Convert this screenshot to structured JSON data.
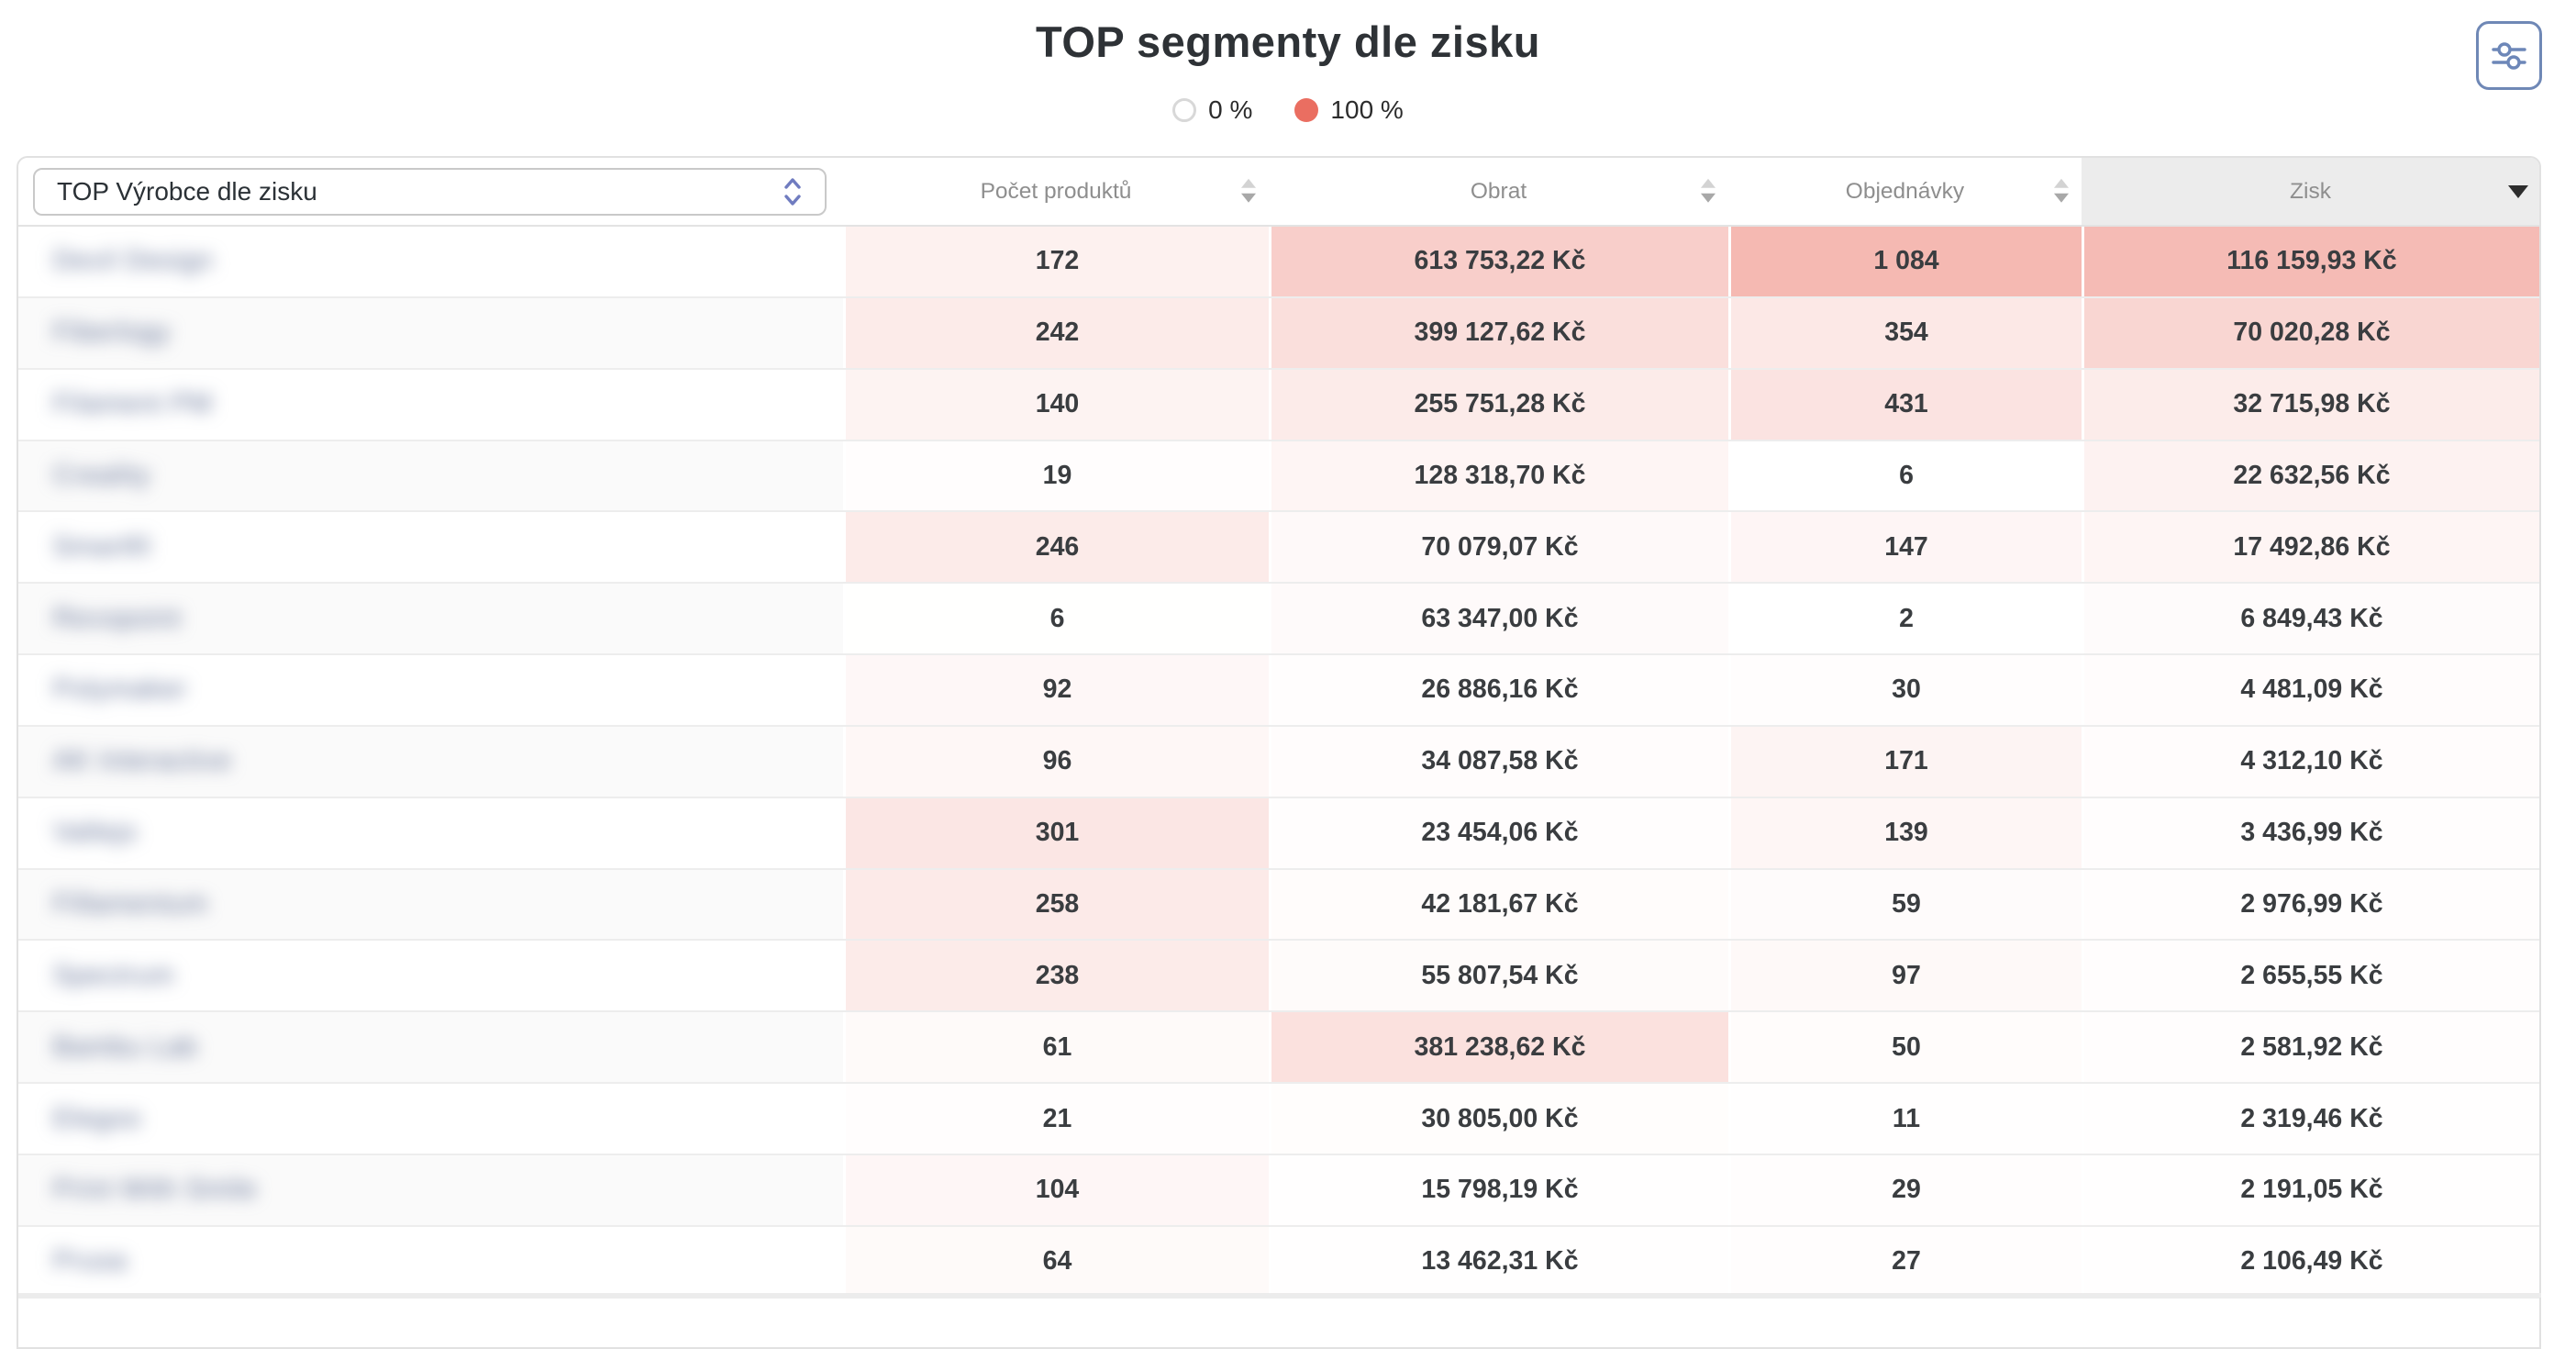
{
  "page": {
    "title": "TOP segmenty dle zisku"
  },
  "legend": {
    "items": [
      {
        "label": "0 %"
      },
      {
        "label": "100 %"
      }
    ],
    "zero_color": "#ffffff",
    "zero_border": "#d8d8d8",
    "full_color": "#ea6e61"
  },
  "select": {
    "value": "TOP Výrobce dle zisku"
  },
  "table": {
    "columns": [
      {
        "label": "Počet produktů",
        "sortable": true
      },
      {
        "label": "Obrat",
        "sortable": true
      },
      {
        "label": "Objednávky",
        "sortable": true
      },
      {
        "label": "Zisk",
        "sortable": true,
        "sorted": "desc"
      }
    ],
    "rows": [
      {
        "name": "Devil Design",
        "cells": [
          {
            "text": "172",
            "value": 172
          },
          {
            "text": "613 753,22 Kč",
            "value": 613753.22
          },
          {
            "text": "1 084",
            "value": 1084
          },
          {
            "text": "116 159,93 Kč",
            "value": 116159.93
          }
        ]
      },
      {
        "name": "Fiberlogy",
        "cells": [
          {
            "text": "242",
            "value": 242
          },
          {
            "text": "399 127,62 Kč",
            "value": 399127.62
          },
          {
            "text": "354",
            "value": 354
          },
          {
            "text": "70 020,28 Kč",
            "value": 70020.28
          }
        ]
      },
      {
        "name": "Filament PM",
        "cells": [
          {
            "text": "140",
            "value": 140
          },
          {
            "text": "255 751,28 Kč",
            "value": 255751.28
          },
          {
            "text": "431",
            "value": 431
          },
          {
            "text": "32 715,98 Kč",
            "value": 32715.98
          }
        ]
      },
      {
        "name": "Creality",
        "cells": [
          {
            "text": "19",
            "value": 19
          },
          {
            "text": "128 318,70 Kč",
            "value": 128318.7
          },
          {
            "text": "6",
            "value": 6
          },
          {
            "text": "22 632,56 Kč",
            "value": 22632.56
          }
        ]
      },
      {
        "name": "Smartfil",
        "cells": [
          {
            "text": "246",
            "value": 246
          },
          {
            "text": "70 079,07 Kč",
            "value": 70079.07
          },
          {
            "text": "147",
            "value": 147
          },
          {
            "text": "17 492,86 Kč",
            "value": 17492.86
          }
        ]
      },
      {
        "name": "Revopoint",
        "cells": [
          {
            "text": "6",
            "value": 6
          },
          {
            "text": "63 347,00 Kč",
            "value": 63347.0
          },
          {
            "text": "2",
            "value": 2
          },
          {
            "text": "6 849,43 Kč",
            "value": 6849.43
          }
        ]
      },
      {
        "name": "Polymaker",
        "cells": [
          {
            "text": "92",
            "value": 92
          },
          {
            "text": "26 886,16 Kč",
            "value": 26886.16
          },
          {
            "text": "30",
            "value": 30
          },
          {
            "text": "4 481,09 Kč",
            "value": 4481.09
          }
        ]
      },
      {
        "name": "AK Interactive",
        "cells": [
          {
            "text": "96",
            "value": 96
          },
          {
            "text": "34 087,58 Kč",
            "value": 34087.58
          },
          {
            "text": "171",
            "value": 171
          },
          {
            "text": "4 312,10 Kč",
            "value": 4312.1
          }
        ]
      },
      {
        "name": "Vallejo",
        "cells": [
          {
            "text": "301",
            "value": 301
          },
          {
            "text": "23 454,06 Kč",
            "value": 23454.06
          },
          {
            "text": "139",
            "value": 139
          },
          {
            "text": "3 436,99 Kč",
            "value": 3436.99
          }
        ]
      },
      {
        "name": "Fillamentum",
        "cells": [
          {
            "text": "258",
            "value": 258
          },
          {
            "text": "42 181,67 Kč",
            "value": 42181.67
          },
          {
            "text": "59",
            "value": 59
          },
          {
            "text": "2 976,99 Kč",
            "value": 2976.99
          }
        ]
      },
      {
        "name": "Spectrum",
        "cells": [
          {
            "text": "238",
            "value": 238
          },
          {
            "text": "55 807,54 Kč",
            "value": 55807.54
          },
          {
            "text": "97",
            "value": 97
          },
          {
            "text": "2 655,55 Kč",
            "value": 2655.55
          }
        ]
      },
      {
        "name": "Bambu Lab",
        "cells": [
          {
            "text": "61",
            "value": 61
          },
          {
            "text": "381 238,62 Kč",
            "value": 381238.62
          },
          {
            "text": "50",
            "value": 50
          },
          {
            "text": "2 581,92 Kč",
            "value": 2581.92
          }
        ]
      },
      {
        "name": "Elegoo",
        "cells": [
          {
            "text": "21",
            "value": 21
          },
          {
            "text": "30 805,00 Kč",
            "value": 30805.0
          },
          {
            "text": "11",
            "value": 11
          },
          {
            "text": "2 319,46 Kč",
            "value": 2319.46
          }
        ]
      },
      {
        "name": "Print With Smile",
        "cells": [
          {
            "text": "104",
            "value": 104
          },
          {
            "text": "15 798,19 Kč",
            "value": 15798.19
          },
          {
            "text": "29",
            "value": 29
          },
          {
            "text": "2 191,05 Kč",
            "value": 2191.05
          }
        ]
      },
      {
        "name": "Prusa",
        "cells": [
          {
            "text": "64",
            "value": 64
          },
          {
            "text": "13 462,31 Kč",
            "value": 13462.31
          },
          {
            "text": "27",
            "value": 27
          },
          {
            "text": "2 106,49 Kč",
            "value": 2106.49
          }
        ]
      }
    ]
  }
}
